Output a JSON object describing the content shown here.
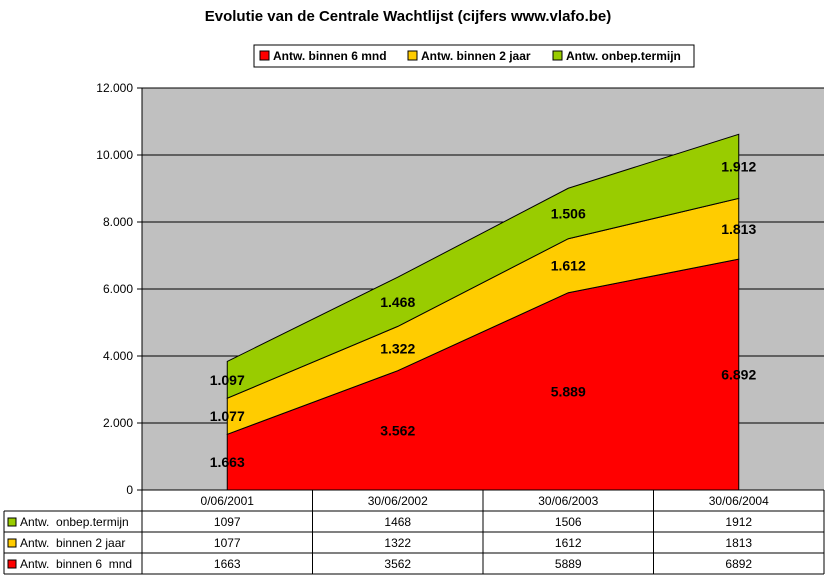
{
  "chart_data": {
    "type": "area",
    "stacked": true,
    "title": "Evolutie van de Centrale Wachtlijst (cijfers www.vlafo.be)",
    "categories": [
      "0/06/2001",
      "30/06/2002",
      "30/06/2003",
      "30/06/2004"
    ],
    "series": [
      {
        "name": "Antw. binnen 6 mnd",
        "color": "#ff0000",
        "values": [
          1663,
          3562,
          5889,
          6892
        ],
        "labels": [
          "1.663",
          "3.562",
          "5.889",
          "6.892"
        ]
      },
      {
        "name": "Antw. binnen 2 jaar",
        "color": "#ffcc00",
        "values": [
          1077,
          1322,
          1612,
          1813
        ],
        "labels": [
          "1.077",
          "1.322",
          "1.612",
          "1.813"
        ]
      },
      {
        "name": "Antw. onbep.termijn",
        "color": "#99cc00",
        "values": [
          1097,
          1468,
          1506,
          1912
        ],
        "labels": [
          "1.097",
          "1.468",
          "1.506",
          "1.912"
        ]
      }
    ],
    "ylim": [
      0,
      12000
    ],
    "yticks": [
      0,
      2000,
      4000,
      6000,
      8000,
      10000,
      12000
    ],
    "ytick_labels": [
      "0",
      "2.000",
      "4.000",
      "6.000",
      "8.000",
      "10.000",
      "12.000"
    ],
    "grid": true,
    "plot_background": "#c0c0c0",
    "legend_position": "top",
    "data_table": {
      "row_order": [
        2,
        1,
        0
      ],
      "rows": [
        {
          "label": "Antw.  onbep.termijn",
          "values": [
            "1097",
            "1468",
            "1506",
            "1912"
          ]
        },
        {
          "label": "Antw.  binnen 2 jaar",
          "values": [
            "1077",
            "1322",
            "1612",
            "1813"
          ]
        },
        {
          "label": "Antw.  binnen 6  mnd",
          "values": [
            "1663",
            "3562",
            "5889",
            "6892"
          ]
        }
      ]
    }
  }
}
